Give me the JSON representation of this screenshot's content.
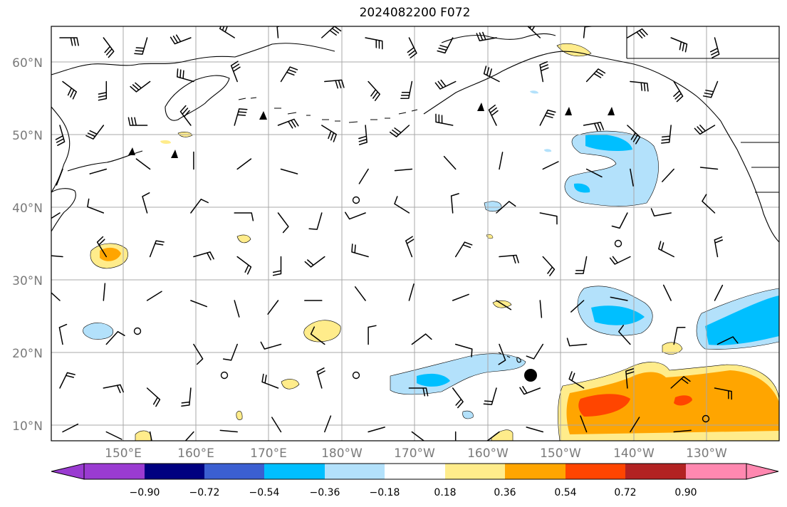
{
  "figure": {
    "title": "2024082200 F072"
  },
  "axes": {
    "lat_labels": [
      "60°N",
      "50°N",
      "40°N",
      "30°N",
      "20°N",
      "10°N"
    ],
    "lon_labels": [
      "150°E",
      "160°E",
      "170°E",
      "180°W",
      "170°W",
      "160°W",
      "150°W",
      "140°W",
      "130°W"
    ]
  },
  "colorbar": {
    "tick_labels": [
      "−0.90",
      "−0.72",
      "−0.54",
      "−0.36",
      "−0.18",
      "0.18",
      "0.36",
      "0.54",
      "0.72",
      "0.90"
    ],
    "colors": [
      "#9a3bd1",
      "#000080",
      "#3b5fd1",
      "#00bfff",
      "#b3e1fb",
      "#ffffff",
      "#ffec8b",
      "#ffa500",
      "#ff4500",
      "#b22222",
      "#ff88b0"
    ]
  },
  "marker": {
    "name": "storm-center"
  },
  "wind_barbs": {
    "count_rows": 11,
    "count_cols": 16
  }
}
